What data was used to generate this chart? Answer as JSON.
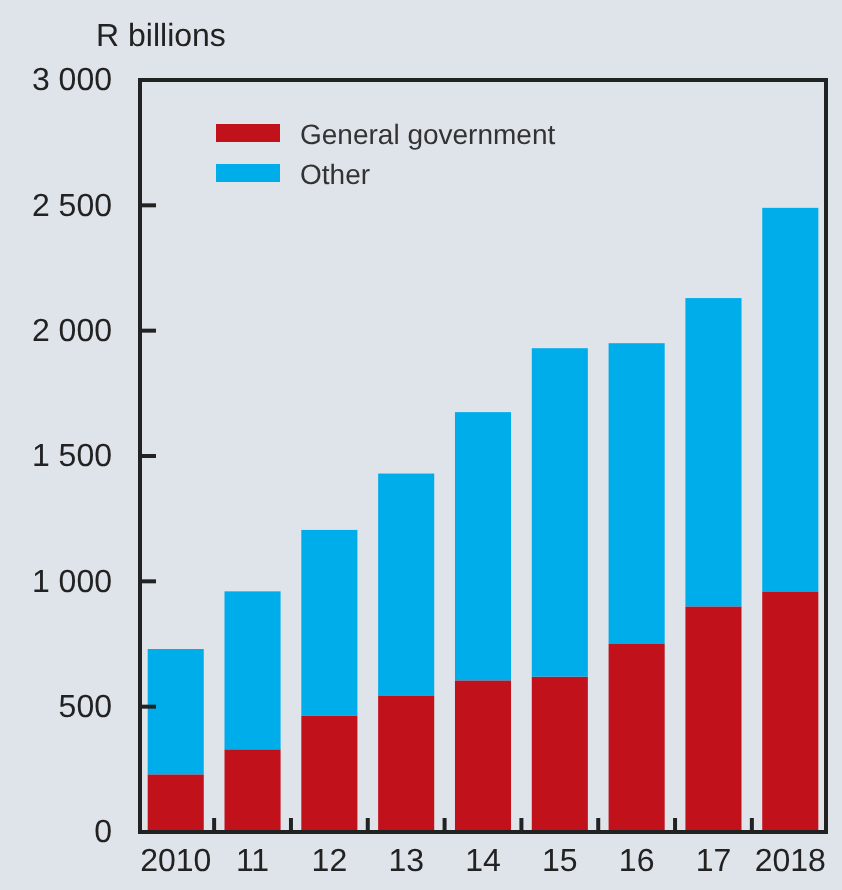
{
  "chart_data": {
    "type": "bar",
    "stacked": true,
    "ylabel": "R billions",
    "categories": [
      "2010",
      "11",
      "12",
      "13",
      "14",
      "15",
      "16",
      "17",
      "2018"
    ],
    "series": [
      {
        "name": "General government",
        "color": "#c1121c",
        "values": [
          230,
          330,
          465,
          545,
          605,
          620,
          750,
          900,
          960
        ]
      },
      {
        "name": "Other",
        "color": "#00adeb",
        "values": [
          500,
          630,
          740,
          885,
          1070,
          1310,
          1200,
          1230,
          1530
        ]
      }
    ],
    "ylim": [
      0,
      3000
    ],
    "yticks": [
      0,
      500,
      {
        "value": 1000,
        "label": "1 000"
      },
      {
        "value": 1500,
        "label": "1 500"
      },
      {
        "value": 2000,
        "label": "2 000"
      },
      {
        "value": 2500,
        "label": "2 500"
      },
      {
        "value": 3000,
        "label": "3 000"
      }
    ],
    "grid": false,
    "legend": "top left"
  }
}
